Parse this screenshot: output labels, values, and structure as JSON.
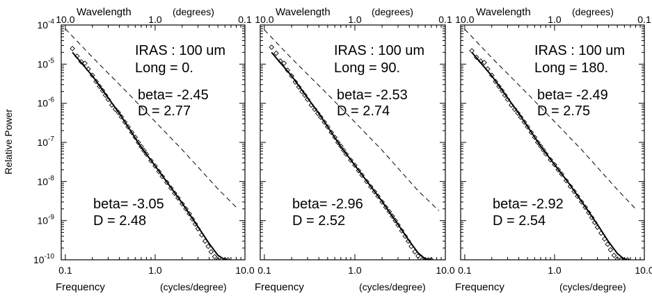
{
  "ylabel": "Relative Power",
  "chart_data": [
    {
      "type": "scatter",
      "panel": 1,
      "scale": "log-log",
      "xlabel": "Frequency",
      "xunit": "(cycles/degree)",
      "top_axis_label": "Wavelength",
      "top_axis_unit": "(degrees)",
      "ylabel": "Relative Power",
      "xlim": [
        0.09,
        10
      ],
      "ylim": [
        1e-10,
        0.0001
      ],
      "x_tick_labels": [
        "0.1",
        "1.0",
        "10.0"
      ],
      "top_tick_labels": [
        "10.0",
        "1.0",
        "0.1"
      ],
      "y_tick_labels": [
        "-10",
        "-9",
        "-8",
        "-7",
        "-6",
        "-5",
        "-4"
      ],
      "annotation_title": "IRAS : 100 um",
      "annotation_long": "Long =  0.",
      "fit_high": {
        "beta": "beta= -2.45",
        "D": "D =  2.77"
      },
      "fit_low": {
        "beta": "beta= -3.05",
        "D": "D =  2.48"
      },
      "series": [
        {
          "style": "diamond",
          "x": [
            0.12,
            0.135,
            0.15,
            0.165,
            0.18,
            0.2,
            0.22,
            0.24,
            0.26,
            0.28,
            0.3,
            0.33,
            0.36,
            0.39,
            0.42,
            0.46,
            0.5,
            0.55,
            0.6,
            0.65,
            0.7,
            0.75,
            0.8,
            0.9,
            1.0,
            1.1,
            1.2,
            1.35,
            1.5,
            1.65,
            1.8,
            2.0,
            2.2,
            2.4,
            2.6,
            2.8,
            3.0,
            3.3,
            3.6,
            3.9,
            4.2,
            4.6,
            5.0,
            5.5,
            6.0,
            6.5
          ],
          "y": [
            2.5e-05,
            1.6e-05,
            1.15e-05,
            1.05e-05,
            7.5e-06,
            5.2e-06,
            3.6e-06,
            2.7e-06,
            2.1e-06,
            1.6e-06,
            1.25e-06,
            9e-07,
            7e-07,
            5.8e-07,
            4.5e-07,
            3.3e-07,
            2.5e-07,
            1.8e-07,
            1.35e-07,
            1e-07,
            7.8e-08,
            6.2e-08,
            5e-08,
            3.4e-08,
            2.5e-08,
            1.8e-08,
            1.35e-08,
            9.5e-09,
            6.8e-09,
            5e-09,
            3.8e-09,
            2.7e-09,
            2e-09,
            1.5e-09,
            1.1e-09,
            8.2e-10,
            6.2e-10,
            4.3e-10,
            3e-10,
            2.2e-10,
            1.6e-10,
            1.2e-10,
            1e-10,
            1e-10,
            1e-10,
            1e-10
          ]
        },
        {
          "style": "solid",
          "x": [
            0.12,
            0.2,
            0.4,
            0.7,
            1.0,
            1.5,
            2.0,
            3.0,
            4.0,
            5.0,
            6.0,
            6.6
          ],
          "y": [
            2e-05,
            5e-06,
            5.5e-07,
            7.5e-08,
            2.5e-08,
            7e-09,
            2.8e-09,
            7e-10,
            2.6e-10,
            1.3e-10,
            1e-10,
            1e-10
          ]
        },
        {
          "style": "dashed",
          "x": [
            0.1,
            0.2,
            0.5,
            1.0,
            2.0,
            5.0,
            8.0
          ],
          "y": [
            8e-05,
            1.5e-05,
            1.8e-06,
            3.4e-07,
            6.5e-08,
            6.5e-09,
            2.2e-09
          ]
        }
      ]
    },
    {
      "type": "scatter",
      "panel": 2,
      "scale": "log-log",
      "xlabel": "Frequency",
      "xunit": "(cycles/degree)",
      "top_axis_label": "Wavelength",
      "top_axis_unit": "(degrees)",
      "xlim": [
        0.09,
        10
      ],
      "ylim": [
        1e-10,
        0.0001
      ],
      "x_tick_labels": [
        "0.1",
        "1.0",
        "10.0"
      ],
      "top_tick_labels": [
        "10.0",
        "1.0",
        "0.1"
      ],
      "annotation_title": "IRAS : 100 um",
      "annotation_long": "Long =  90.",
      "fit_high": {
        "beta": "beta= -2.53",
        "D": "D =  2.74"
      },
      "fit_low": {
        "beta": "beta= -2.96",
        "D": "D =  2.52"
      },
      "series": [
        {
          "style": "diamond",
          "x": [
            0.12,
            0.135,
            0.15,
            0.165,
            0.18,
            0.2,
            0.22,
            0.24,
            0.26,
            0.28,
            0.3,
            0.33,
            0.36,
            0.39,
            0.42,
            0.46,
            0.5,
            0.55,
            0.6,
            0.65,
            0.7,
            0.75,
            0.8,
            0.9,
            1.0,
            1.1,
            1.2,
            1.35,
            1.5,
            1.65,
            1.8,
            2.0,
            2.2,
            2.4,
            2.6,
            2.8,
            3.0,
            3.3,
            3.6,
            3.9,
            4.2,
            4.6,
            5.0,
            5.5,
            6.0,
            6.5,
            7.0
          ],
          "y": [
            2.7e-05,
            1.9e-05,
            1.2e-05,
            1.05e-05,
            7e-06,
            5e-06,
            3.5e-06,
            2.6e-06,
            2e-06,
            1.6e-06,
            1.25e-06,
            9e-07,
            7e-07,
            5.5e-07,
            4.4e-07,
            3.3e-07,
            2.5e-07,
            1.8e-07,
            1.35e-07,
            1e-07,
            8e-08,
            6.3e-08,
            5e-08,
            3.5e-08,
            2.6e-08,
            1.9e-08,
            1.45e-08,
            1e-08,
            7.3e-09,
            5.5e-09,
            4.2e-09,
            3e-09,
            2.2e-09,
            1.7e-09,
            1.3e-09,
            1e-09,
            7.7e-10,
            5.5e-10,
            4e-10,
            3e-10,
            2.2e-10,
            1.6e-10,
            1.25e-10,
            1e-10,
            1e-10,
            1e-10,
            1e-10
          ]
        },
        {
          "style": "solid",
          "x": [
            0.12,
            0.2,
            0.4,
            0.7,
            1.0,
            1.5,
            2.0,
            3.0,
            4.0,
            5.0,
            6.0,
            7.0
          ],
          "y": [
            2e-05,
            5e-06,
            5.5e-07,
            7.8e-08,
            2.6e-08,
            7.5e-09,
            3.1e-09,
            8e-10,
            3e-10,
            1.5e-10,
            1.05e-10,
            1e-10
          ]
        },
        {
          "style": "dashed",
          "x": [
            0.1,
            0.2,
            0.5,
            1.0,
            2.0,
            5.0,
            8.5
          ],
          "y": [
            7.5e-05,
            1.4e-05,
            1.7e-06,
            3.3e-07,
            6.3e-08,
            5.8e-09,
            1.8e-09
          ]
        }
      ]
    },
    {
      "type": "scatter",
      "panel": 3,
      "scale": "log-log",
      "xlabel": "Frequency",
      "xunit": "(cycles/degree)",
      "top_axis_label": "Wavelength",
      "top_axis_unit": "(degrees)",
      "xlim": [
        0.09,
        10
      ],
      "ylim": [
        1e-10,
        0.0001
      ],
      "x_tick_labels": [
        "0.1",
        "1.0",
        "10.0"
      ],
      "top_tick_labels": [
        "10.0",
        "1.0",
        "0.1"
      ],
      "annotation_title": "IRAS : 100 um",
      "annotation_long": "Long = 180.",
      "fit_high": {
        "beta": "beta= -2.49",
        "D": "D =  2.75"
      },
      "fit_low": {
        "beta": "beta= -2.92",
        "D": "D =  2.54"
      },
      "series": [
        {
          "style": "diamond",
          "x": [
            0.12,
            0.135,
            0.15,
            0.165,
            0.18,
            0.2,
            0.22,
            0.24,
            0.26,
            0.28,
            0.3,
            0.33,
            0.36,
            0.39,
            0.42,
            0.46,
            0.5,
            0.55,
            0.6,
            0.65,
            0.7,
            0.75,
            0.8,
            0.9,
            1.0,
            1.1,
            1.2,
            1.35,
            1.5,
            1.65,
            1.8,
            2.0,
            2.2,
            2.4,
            2.6,
            2.8,
            3.0,
            3.3,
            3.6,
            3.9,
            4.2,
            4.6,
            5.0,
            5.5,
            6.0,
            6.5
          ],
          "y": [
            2.2e-05,
            1.5e-05,
            1.2e-05,
            1.1e-05,
            7.5e-06,
            5.2e-06,
            3.6e-06,
            2.7e-06,
            2.1e-06,
            1.6e-06,
            1.25e-06,
            9e-07,
            7e-07,
            5.6e-07,
            4.4e-07,
            3.3e-07,
            2.5e-07,
            1.8e-07,
            1.35e-07,
            1e-07,
            8e-08,
            6.4e-08,
            5.1e-08,
            3.6e-08,
            2.7e-08,
            2e-08,
            1.55e-08,
            1.05e-08,
            7.5e-09,
            5.6e-09,
            4.2e-09,
            3e-09,
            2.2e-09,
            1.6e-09,
            1.2e-09,
            9e-10,
            6.8e-10,
            4.8e-10,
            3.4e-10,
            2.5e-10,
            1.8e-10,
            1.3e-10,
            1.05e-10,
            1e-10,
            1e-10,
            1e-10
          ]
        },
        {
          "style": "solid",
          "x": [
            0.12,
            0.2,
            0.4,
            0.7,
            1.0,
            1.5,
            2.0,
            3.0,
            4.0,
            5.0,
            6.0,
            6.8
          ],
          "y": [
            2e-05,
            5e-06,
            5.5e-07,
            8e-08,
            2.7e-08,
            8e-09,
            3.1e-09,
            8e-10,
            2.9e-10,
            1.45e-10,
            1.02e-10,
            1e-10
          ]
        },
        {
          "style": "dashed",
          "x": [
            0.1,
            0.2,
            0.5,
            1.0,
            2.0,
            5.0,
            8.0
          ],
          "y": [
            7.8e-05,
            1.45e-05,
            1.75e-06,
            3.4e-07,
            6.5e-08,
            6.2e-09,
            2e-09
          ]
        }
      ]
    }
  ]
}
